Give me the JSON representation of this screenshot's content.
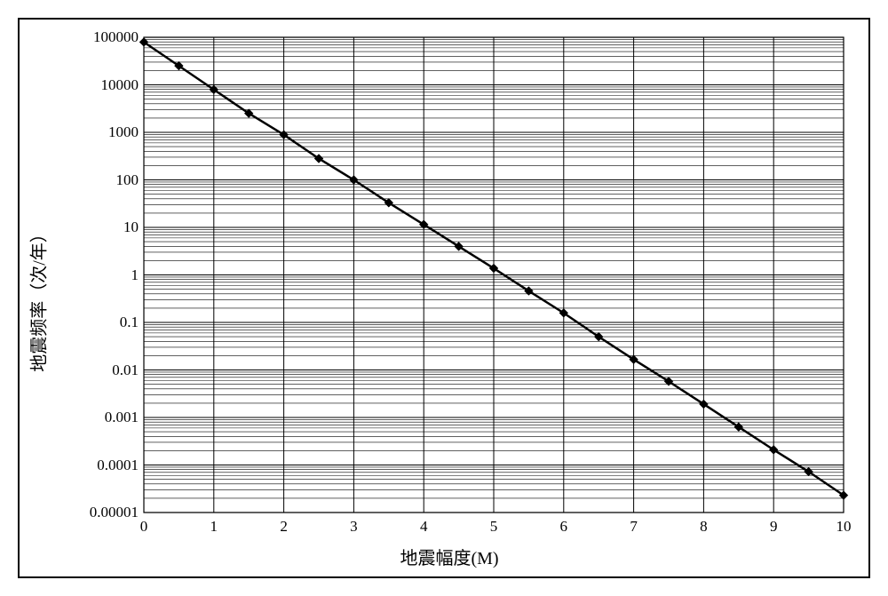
{
  "chart": {
    "type": "line",
    "y_axis_label": "地震频率（次/年）",
    "x_axis_label": "地震幅度(M)",
    "x_domain": [
      0,
      10
    ],
    "x_ticks": [
      0,
      1,
      2,
      3,
      4,
      5,
      6,
      7,
      8,
      9,
      10
    ],
    "y_scale": "log",
    "y_domain_exp": [
      -5,
      5
    ],
    "y_tick_labels": [
      "0.00001",
      "0.0001",
      "0.001",
      "0.01",
      "0.1",
      "1",
      "10",
      "100",
      "1000",
      "10000",
      "100000"
    ],
    "y_tick_exps": [
      -5,
      -4,
      -3,
      -2,
      -1,
      0,
      1,
      2,
      3,
      4,
      5
    ],
    "data": {
      "x": [
        0,
        0.5,
        1,
        1.5,
        2,
        2.5,
        3,
        3.5,
        4,
        4.5,
        5,
        5.5,
        6,
        6.5,
        7,
        7.5,
        8,
        8.5,
        9,
        9.5,
        10
      ],
      "y": [
        79433,
        25119,
        7943,
        2512,
        890,
        281,
        100,
        33,
        11.5,
        3.98,
        1.38,
        0.46,
        0.158,
        0.05,
        0.0166,
        0.00575,
        0.00191,
        0.000631,
        0.000209,
        7.24e-05,
        2.3e-05
      ]
    },
    "line_color": "#000000",
    "line_width": 2.5,
    "marker_size": 5,
    "marker_color": "#000000",
    "axis_color": "#000000",
    "major_grid_color": "#000000",
    "major_grid_width": 1,
    "minor_grid_color": "#000000",
    "minor_grid_width": 0.6,
    "background_color": "#ffffff",
    "border_color": "#000000",
    "label_fontsize": 20,
    "tick_fontsize": 17
  }
}
